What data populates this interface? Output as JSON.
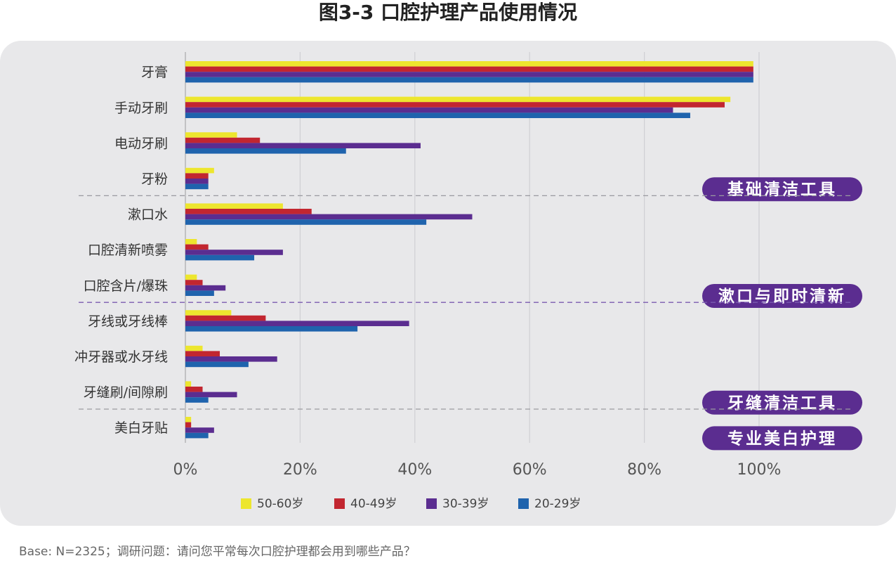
{
  "title": "图3-3 口腔护理产品使用情况",
  "footnote": "Base: N=2325；调研问题：请问您平常每次口腔护理都会用到哪些产品？",
  "chart_data": {
    "type": "bar",
    "orientation": "horizontal",
    "categories": [
      "牙膏",
      "手动牙刷",
      "电动牙刷",
      "牙粉",
      "漱口水",
      "口腔清新喷雾",
      "口腔含片/爆珠",
      "牙线或牙线棒",
      "冲牙器或水牙线",
      "牙缝刷/间隙刷",
      "美白牙贴"
    ],
    "series": [
      {
        "name": "50-60岁",
        "color": "#ede62e",
        "values": [
          99,
          95,
          9,
          5,
          17,
          2,
          2,
          8,
          3,
          1,
          1
        ]
      },
      {
        "name": "40-49岁",
        "color": "#c22630",
        "values": [
          99,
          94,
          13,
          4,
          22,
          4,
          3,
          14,
          6,
          3,
          1
        ]
      },
      {
        "name": "30-39岁",
        "color": "#5b2d90",
        "values": [
          99,
          85,
          41,
          4,
          50,
          17,
          7,
          39,
          16,
          9,
          5
        ]
      },
      {
        "name": "20-29岁",
        "color": "#1f63ad",
        "values": [
          99,
          88,
          28,
          4,
          42,
          12,
          5,
          30,
          11,
          4,
          4
        ]
      }
    ],
    "xlim": [
      0,
      100
    ],
    "xticks": [
      0,
      20,
      40,
      60,
      80,
      100
    ],
    "xtick_labels": [
      "0%",
      "20%",
      "40%",
      "60%",
      "80%",
      "100%"
    ],
    "groups": [
      {
        "label": "基础清洁工具",
        "color": "#5b2d90",
        "last_category_index": 3
      },
      {
        "label": "漱口与即时清新",
        "color": "#5b2d90",
        "last_category_index": 6
      },
      {
        "label": "牙缝清洁工具",
        "color": "#5b2d90",
        "last_category_index": 9
      },
      {
        "label": "专业美白护理",
        "color": "#5b2d90",
        "last_category_index": 10
      }
    ],
    "legend_position": "bottom",
    "grid": true
  }
}
